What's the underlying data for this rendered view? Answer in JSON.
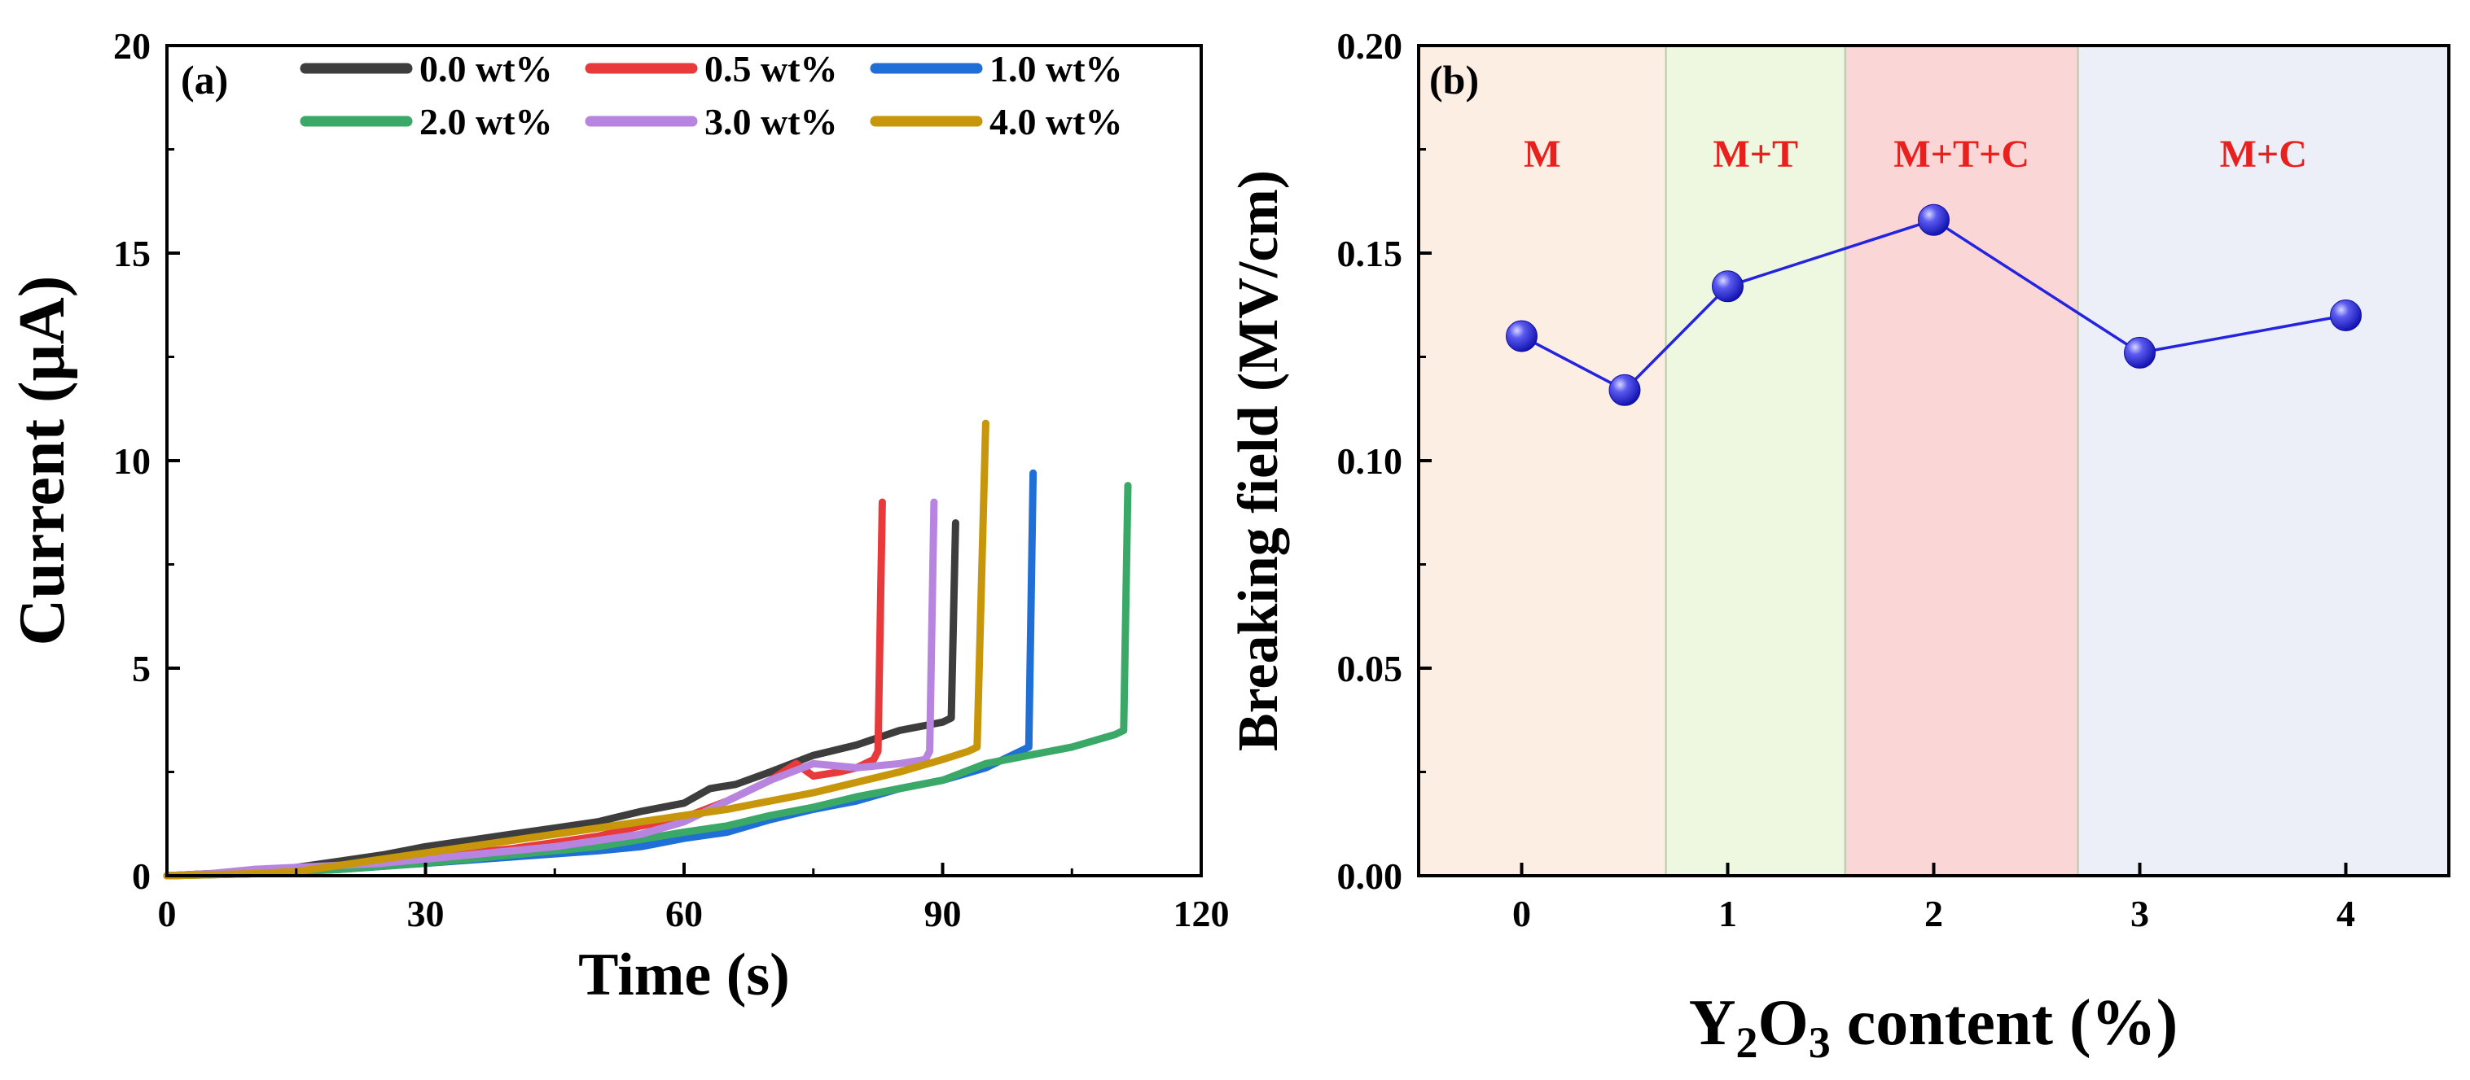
{
  "chart_data": [
    {
      "type": "line",
      "panel_label": "(a)",
      "xlabel": "Time (s)",
      "ylabel": "Current (μA)",
      "xlim": [
        0,
        120
      ],
      "ylim": [
        0,
        20
      ],
      "xticks": [
        0,
        30,
        60,
        90,
        120
      ],
      "yticks": [
        0,
        5,
        10,
        15,
        20
      ],
      "legend_position": "top",
      "series": [
        {
          "name": "0.0 wt%",
          "color": "#3d3d3d",
          "x": [
            0,
            5,
            10,
            15,
            20,
            25,
            30,
            35,
            40,
            45,
            50,
            55,
            60,
            63,
            66,
            70,
            75,
            80,
            85,
            90,
            91,
            91.5
          ],
          "y": [
            0,
            0.05,
            0.1,
            0.2,
            0.35,
            0.5,
            0.7,
            0.85,
            1.0,
            1.15,
            1.3,
            1.55,
            1.75,
            2.1,
            2.2,
            2.5,
            2.9,
            3.15,
            3.5,
            3.7,
            3.8,
            8.5
          ]
        },
        {
          "name": "0.5 wt%",
          "color": "#e83a3a",
          "x": [
            0,
            5,
            10,
            15,
            20,
            25,
            30,
            35,
            40,
            45,
            50,
            55,
            60,
            65,
            70,
            73,
            75,
            78,
            80,
            82,
            82.5,
            83
          ],
          "y": [
            0,
            0.05,
            0.1,
            0.15,
            0.25,
            0.35,
            0.45,
            0.55,
            0.65,
            0.8,
            0.95,
            1.2,
            1.4,
            1.8,
            2.3,
            2.7,
            2.4,
            2.5,
            2.6,
            2.8,
            3.0,
            9.0
          ]
        },
        {
          "name": "1.0 wt%",
          "color": "#1f6fd6",
          "x": [
            0,
            10,
            20,
            30,
            40,
            50,
            55,
            60,
            65,
            70,
            75,
            80,
            85,
            90,
            95,
            99,
            100,
            100.5
          ],
          "y": [
            0,
            0.05,
            0.15,
            0.3,
            0.45,
            0.6,
            0.7,
            0.9,
            1.05,
            1.35,
            1.6,
            1.8,
            2.1,
            2.3,
            2.6,
            3.0,
            3.1,
            9.7
          ]
        },
        {
          "name": "2.0 wt%",
          "color": "#3aa866",
          "x": [
            0,
            10,
            20,
            30,
            40,
            50,
            60,
            65,
            70,
            75,
            80,
            85,
            90,
            95,
            100,
            105,
            110,
            111,
            111.5
          ],
          "y": [
            0,
            0.05,
            0.15,
            0.3,
            0.5,
            0.7,
            1.05,
            1.2,
            1.45,
            1.65,
            1.9,
            2.1,
            2.3,
            2.7,
            2.9,
            3.1,
            3.4,
            3.5,
            9.4
          ]
        },
        {
          "name": "3.0 wt%",
          "color": "#b784e0",
          "x": [
            0,
            5,
            10,
            15,
            20,
            25,
            30,
            35,
            40,
            45,
            50,
            55,
            60,
            65,
            70,
            75,
            80,
            85,
            88,
            88.5,
            89
          ],
          "y": [
            0,
            0.05,
            0.15,
            0.2,
            0.25,
            0.3,
            0.4,
            0.5,
            0.6,
            0.7,
            0.85,
            1.0,
            1.3,
            1.8,
            2.3,
            2.7,
            2.6,
            2.7,
            2.8,
            3.0,
            9.0
          ]
        },
        {
          "name": "4.0 wt%",
          "color": "#c8960a",
          "x": [
            0,
            10,
            15,
            20,
            25,
            30,
            35,
            40,
            45,
            50,
            55,
            60,
            65,
            70,
            75,
            80,
            85,
            90,
            93,
            94,
            95
          ],
          "y": [
            0,
            0.05,
            0.1,
            0.25,
            0.4,
            0.55,
            0.7,
            0.85,
            1.0,
            1.15,
            1.3,
            1.45,
            1.6,
            1.8,
            2.0,
            2.25,
            2.5,
            2.8,
            3.0,
            3.1,
            10.9
          ]
        }
      ]
    },
    {
      "type": "scatter",
      "panel_label": "(b)",
      "xlabel": "Y₂O₃ content (%)",
      "xlabel_parts": {
        "pre": "Y",
        "sub1": "2",
        "mid": "O",
        "sub2": "3",
        "post": " content (%)"
      },
      "ylabel": "Breaking field (MV/cm)",
      "xlim": [
        -0.5,
        4.5
      ],
      "ylim": [
        0,
        0.2
      ],
      "xticks": [
        0,
        1,
        2,
        3,
        4
      ],
      "yticks": [
        "0.00",
        "0.05",
        "0.10",
        "0.15",
        "0.20"
      ],
      "x": [
        0,
        0.5,
        1,
        2,
        3,
        4
      ],
      "y": [
        0.13,
        0.117,
        0.142,
        0.158,
        0.126,
        0.135
      ],
      "marker_color": "#2323e0",
      "regions": [
        {
          "label": "M",
          "from": -0.5,
          "to": 0.7,
          "color": "#fdeee4"
        },
        {
          "label": "M+T",
          "from": 0.7,
          "to": 1.57,
          "color": "#eef8e0"
        },
        {
          "label": "M+T+C",
          "from": 1.57,
          "to": 2.7,
          "color": "#fbd6d6"
        },
        {
          "label": "M+C",
          "from": 2.7,
          "to": 4.5,
          "color": "#eceff8"
        }
      ],
      "region_label_color": "#e8201e"
    }
  ]
}
